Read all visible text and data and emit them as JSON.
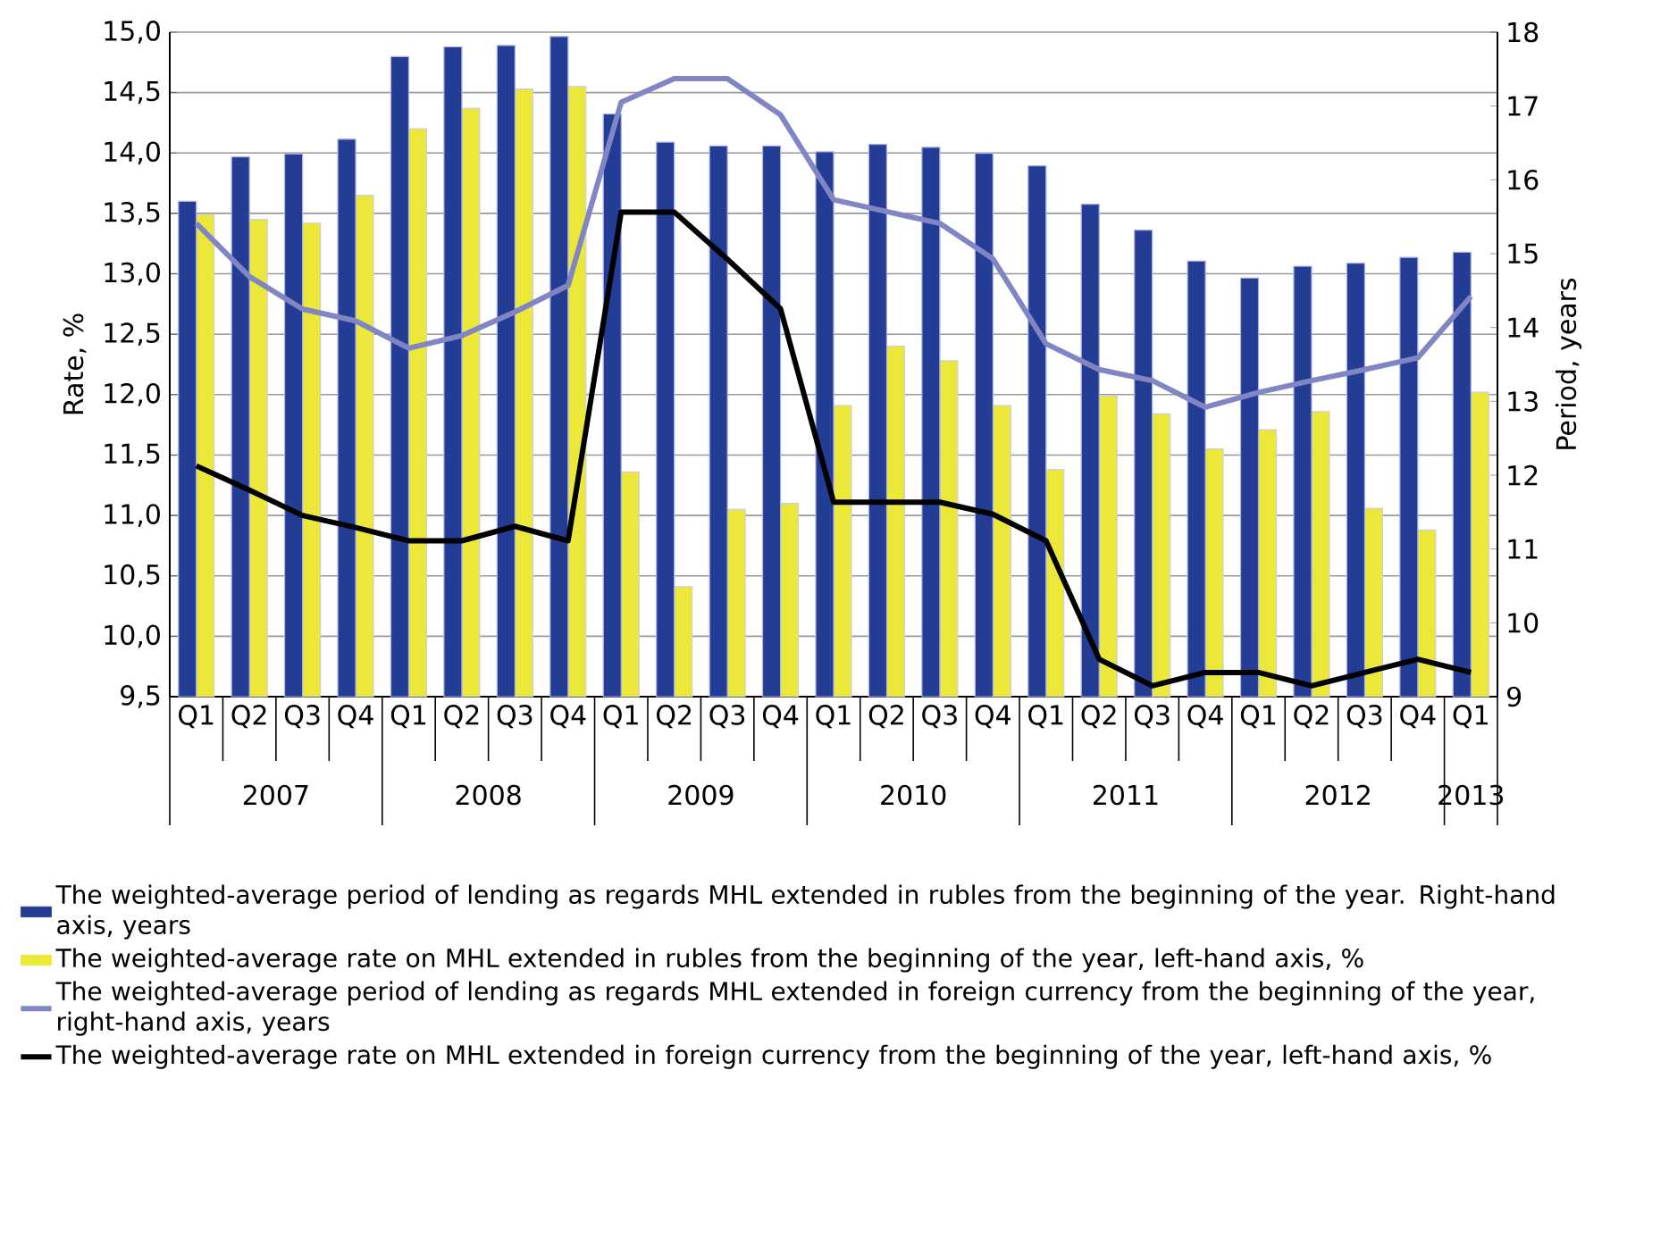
{
  "chart_data": {
    "type": "bar",
    "categories": [
      "Q1",
      "Q2",
      "Q3",
      "Q4",
      "Q1",
      "Q2",
      "Q3",
      "Q4",
      "Q1",
      "Q2",
      "Q3",
      "Q4",
      "Q1",
      "Q2",
      "Q3",
      "Q4",
      "Q1",
      "Q2",
      "Q3",
      "Q4",
      "Q1",
      "Q2",
      "Q3",
      "Q4",
      "Q1"
    ],
    "series": [
      {
        "name": "The weighted-average period of lending as regards MHL extended in rubles from the beginning of the year. Right-hand axis, years",
        "axis": "y2",
        "color": "#233c94",
        "values": [
          15.71,
          16.31,
          16.35,
          16.55,
          17.67,
          17.8,
          17.82,
          17.94,
          16.89,
          16.51,
          16.46,
          16.46,
          16.38,
          16.48,
          16.44,
          16.36,
          16.19,
          15.67,
          15.32,
          14.9,
          14.67,
          14.83,
          14.87,
          14.95,
          15.02
        ]
      },
      {
        "name": "The weighted-average rate on MHL extended in rubles from the beginning of the year, left-hand axis, %",
        "axis": "y",
        "color": "#ebe83a",
        "values": [
          13.49,
          13.45,
          13.42,
          13.65,
          14.2,
          14.37,
          14.53,
          14.55,
          11.36,
          10.41,
          11.05,
          11.1,
          11.91,
          12.4,
          12.28,
          11.91,
          11.38,
          11.99,
          11.84,
          11.55,
          11.71,
          11.86,
          11.06,
          10.88,
          12.02
        ]
      },
      {
        "name": "The weighted-average period of lending as regards MHL extended in foreign currency from the beginning of the year, right-hand axis, years",
        "type": "line",
        "axis": "y2",
        "color": "#8086c4",
        "values": [
          15.41,
          14.69,
          14.25,
          14.09,
          13.72,
          13.89,
          14.21,
          14.57,
          17.05,
          17.37,
          17.37,
          16.88,
          15.73,
          15.57,
          15.41,
          14.93,
          13.78,
          13.43,
          13.28,
          12.92,
          13.12,
          13.28,
          13.43,
          13.59,
          14.42
        ]
      },
      {
        "name": "The weighted-average rate on MHL extended in foreign currency from the beginning of the year, left-hand axis, %",
        "type": "line",
        "axis": "y",
        "color": "#000000",
        "values": [
          11.41,
          11.21,
          11.0,
          10.9,
          10.79,
          10.79,
          10.91,
          10.79,
          13.51,
          13.51,
          13.12,
          12.71,
          11.11,
          11.11,
          11.11,
          11.01,
          10.79,
          9.81,
          9.59,
          9.7,
          9.7,
          9.59,
          9.7,
          9.81,
          9.7
        ]
      }
    ],
    "ylabel": "Rate, %",
    "y2label": "Period, years",
    "ylim": [
      9.5,
      15.0
    ],
    "yticks": [
      {
        "value": 9.5,
        "label": "9,5"
      },
      {
        "value": 10,
        "label": "10,0"
      },
      {
        "value": 10.5,
        "label": "10,5"
      },
      {
        "value": 11,
        "label": "11,0"
      },
      {
        "value": 11.5,
        "label": "11,5"
      },
      {
        "value": 12,
        "label": "12,0"
      },
      {
        "value": 12.5,
        "label": "12,5"
      },
      {
        "value": 13,
        "label": "13,0"
      },
      {
        "value": 13.5,
        "label": "13,5"
      },
      {
        "value": 14,
        "label": "14,0"
      },
      {
        "value": 14.5,
        "label": "14,5"
      },
      {
        "value": 15,
        "label": "15,0"
      }
    ],
    "y2lim": [
      9,
      18
    ],
    "y2ticks": [
      9,
      10,
      11,
      12,
      13,
      14,
      15,
      16,
      17,
      18
    ],
    "annotations": [
      "2007",
      "2008",
      "2009",
      "2010",
      "2011",
      "2012",
      "2013"
    ],
    "grid": "y",
    "legend": "bottom"
  }
}
